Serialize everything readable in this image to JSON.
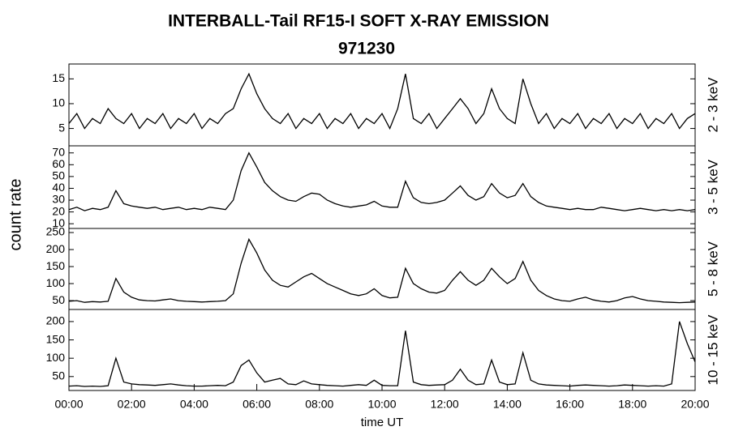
{
  "header": {
    "title": "INTERBALL-Tail RF15-I SOFT X-RAY EMISSION",
    "subtitle": "971230",
    "x_label": "time UT",
    "y_label": "count rate"
  },
  "chart_data": [
    {
      "type": "line",
      "axis_label": "2 - 3 keV",
      "color": "#000000",
      "ylim": [
        1.5,
        18
      ],
      "yticks": [
        5,
        10,
        15
      ],
      "xlim": [
        0,
        20
      ],
      "x": [
        0,
        0.25,
        0.5,
        0.75,
        1,
        1.25,
        1.5,
        1.75,
        2,
        2.25,
        2.5,
        2.75,
        3,
        3.25,
        3.5,
        3.75,
        4,
        4.25,
        4.5,
        4.75,
        5,
        5.25,
        5.5,
        5.75,
        6,
        6.25,
        6.5,
        6.75,
        7,
        7.25,
        7.5,
        7.75,
        8,
        8.25,
        8.5,
        8.75,
        9,
        9.25,
        9.5,
        9.75,
        10,
        10.25,
        10.5,
        10.75,
        11,
        11.25,
        11.5,
        11.75,
        12,
        12.25,
        12.5,
        12.75,
        13,
        13.25,
        13.5,
        13.75,
        14,
        14.25,
        14.5,
        14.75,
        15,
        15.25,
        15.5,
        15.75,
        16,
        16.25,
        16.5,
        16.75,
        17,
        17.25,
        17.5,
        17.75,
        18,
        18.25,
        18.5,
        18.75,
        19,
        19.25,
        19.5,
        19.75,
        20
      ],
      "values": [
        6,
        8,
        5,
        7,
        6,
        9,
        7,
        6,
        8,
        5,
        7,
        6,
        8,
        5,
        7,
        6,
        8,
        5,
        7,
        6,
        8,
        9,
        13,
        16,
        12,
        9,
        7,
        6,
        8,
        5,
        7,
        6,
        8,
        5,
        7,
        6,
        8,
        5,
        7,
        6,
        8,
        5,
        9,
        16,
        7,
        6,
        8,
        5,
        7,
        9,
        11,
        9,
        6,
        8,
        13,
        9,
        7,
        6,
        15,
        10,
        6,
        8,
        5,
        7,
        6,
        8,
        5,
        7,
        6,
        8,
        5,
        7,
        6,
        8,
        5,
        7,
        6,
        8,
        5,
        7,
        8
      ]
    },
    {
      "type": "line",
      "axis_label": "3 - 5 keV",
      "color": "#000000",
      "ylim": [
        6,
        76
      ],
      "yticks": [
        10,
        20,
        30,
        40,
        50,
        60,
        70
      ],
      "xlim": [
        0,
        20
      ],
      "x": [
        0,
        0.25,
        0.5,
        0.75,
        1,
        1.25,
        1.5,
        1.75,
        2,
        2.25,
        2.5,
        2.75,
        3,
        3.25,
        3.5,
        3.75,
        4,
        4.25,
        4.5,
        4.75,
        5,
        5.25,
        5.5,
        5.75,
        6,
        6.25,
        6.5,
        6.75,
        7,
        7.25,
        7.5,
        7.75,
        8,
        8.25,
        8.5,
        8.75,
        9,
        9.25,
        9.5,
        9.75,
        10,
        10.25,
        10.5,
        10.75,
        11,
        11.25,
        11.5,
        11.75,
        12,
        12.25,
        12.5,
        12.75,
        13,
        13.25,
        13.5,
        13.75,
        14,
        14.25,
        14.5,
        14.75,
        15,
        15.25,
        15.5,
        15.75,
        16,
        16.25,
        16.5,
        16.75,
        17,
        17.25,
        17.5,
        17.75,
        18,
        18.25,
        18.5,
        18.75,
        19,
        19.25,
        19.5,
        19.75,
        20
      ],
      "values": [
        22,
        24,
        21,
        23,
        22,
        24,
        38,
        27,
        25,
        24,
        23,
        24,
        22,
        23,
        24,
        22,
        23,
        22,
        24,
        23,
        22,
        30,
        55,
        70,
        58,
        45,
        38,
        33,
        30,
        29,
        33,
        36,
        35,
        30,
        27,
        25,
        24,
        25,
        26,
        29,
        25,
        24,
        24,
        46,
        32,
        28,
        27,
        28,
        30,
        36,
        42,
        34,
        30,
        33,
        44,
        36,
        32,
        34,
        44,
        33,
        28,
        25,
        24,
        23,
        22,
        23,
        22,
        22,
        24,
        23,
        22,
        21,
        22,
        23,
        22,
        21,
        22,
        21,
        22,
        21,
        22
      ]
    },
    {
      "type": "line",
      "axis_label": "5 - 8 keV",
      "color": "#000000",
      "ylim": [
        24,
        262
      ],
      "yticks": [
        50,
        100,
        150,
        200,
        250
      ],
      "xlim": [
        0,
        20
      ],
      "x": [
        0,
        0.25,
        0.5,
        0.75,
        1,
        1.25,
        1.5,
        1.75,
        2,
        2.25,
        2.5,
        2.75,
        3,
        3.25,
        3.5,
        3.75,
        4,
        4.25,
        4.5,
        4.75,
        5,
        5.25,
        5.5,
        5.75,
        6,
        6.25,
        6.5,
        6.75,
        7,
        7.25,
        7.5,
        7.75,
        8,
        8.25,
        8.5,
        8.75,
        9,
        9.25,
        9.5,
        9.75,
        10,
        10.25,
        10.5,
        10.75,
        11,
        11.25,
        11.5,
        11.75,
        12,
        12.25,
        12.5,
        12.75,
        13,
        13.25,
        13.5,
        13.75,
        14,
        14.25,
        14.5,
        14.75,
        15,
        15.25,
        15.5,
        15.75,
        16,
        16.25,
        16.5,
        16.75,
        17,
        17.25,
        17.5,
        17.75,
        18,
        18.25,
        18.5,
        18.75,
        19,
        19.25,
        19.5,
        19.75,
        20
      ],
      "values": [
        48,
        50,
        45,
        47,
        46,
        48,
        115,
        75,
        60,
        52,
        50,
        49,
        52,
        55,
        50,
        48,
        47,
        46,
        47,
        48,
        50,
        70,
        160,
        230,
        190,
        140,
        110,
        95,
        90,
        105,
        120,
        130,
        115,
        100,
        90,
        80,
        70,
        65,
        70,
        85,
        65,
        58,
        60,
        145,
        100,
        85,
        75,
        72,
        80,
        110,
        135,
        110,
        95,
        110,
        145,
        120,
        100,
        115,
        165,
        110,
        80,
        65,
        55,
        50,
        48,
        55,
        60,
        52,
        48,
        46,
        50,
        58,
        62,
        55,
        50,
        48,
        46,
        45,
        44,
        45,
        46
      ]
    },
    {
      "type": "line",
      "axis_label": "10 - 15 keV",
      "color": "#000000",
      "ylim": [
        12,
        233
      ],
      "yticks": [
        50,
        100,
        150,
        200
      ],
      "xlim": [
        0,
        20
      ],
      "xticks": [
        {
          "value": 0,
          "label": "00:00"
        },
        {
          "value": 2,
          "label": "02:00"
        },
        {
          "value": 4,
          "label": "04:00"
        },
        {
          "value": 6,
          "label": "06:00"
        },
        {
          "value": 8,
          "label": "08:00"
        },
        {
          "value": 10,
          "label": "10:00"
        },
        {
          "value": 12,
          "label": "12:00"
        },
        {
          "value": 14,
          "label": "14:00"
        },
        {
          "value": 16,
          "label": "16:00"
        },
        {
          "value": 18,
          "label": "18:00"
        },
        {
          "value": 20,
          "label": "20:00"
        }
      ],
      "x": [
        0,
        0.25,
        0.5,
        0.75,
        1,
        1.25,
        1.5,
        1.75,
        2,
        2.25,
        2.5,
        2.75,
        3,
        3.25,
        3.5,
        3.75,
        4,
        4.25,
        4.5,
        4.75,
        5,
        5.25,
        5.5,
        5.75,
        6,
        6.25,
        6.5,
        6.75,
        7,
        7.25,
        7.5,
        7.75,
        8,
        8.25,
        8.5,
        8.75,
        9,
        9.25,
        9.5,
        9.75,
        10,
        10.25,
        10.5,
        10.75,
        11,
        11.25,
        11.5,
        11.75,
        12,
        12.25,
        12.5,
        12.75,
        13,
        13.25,
        13.5,
        13.75,
        14,
        14.25,
        14.5,
        14.75,
        15,
        15.25,
        15.5,
        15.75,
        16,
        16.25,
        16.5,
        16.75,
        17,
        17.25,
        17.5,
        17.75,
        18,
        18.25,
        18.5,
        18.75,
        19,
        19.25,
        19.5,
        19.75,
        20
      ],
      "values": [
        24,
        25,
        23,
        24,
        23,
        25,
        100,
        35,
        30,
        28,
        27,
        26,
        28,
        30,
        27,
        25,
        24,
        24,
        25,
        26,
        25,
        35,
        80,
        95,
        60,
        35,
        40,
        45,
        30,
        28,
        38,
        30,
        28,
        26,
        25,
        24,
        26,
        28,
        26,
        40,
        26,
        25,
        25,
        175,
        35,
        28,
        26,
        27,
        28,
        40,
        70,
        40,
        28,
        30,
        95,
        35,
        28,
        30,
        115,
        40,
        30,
        27,
        26,
        25,
        24,
        26,
        27,
        26,
        25,
        24,
        25,
        27,
        26,
        25,
        24,
        25,
        24,
        30,
        200,
        140,
        90
      ]
    }
  ]
}
